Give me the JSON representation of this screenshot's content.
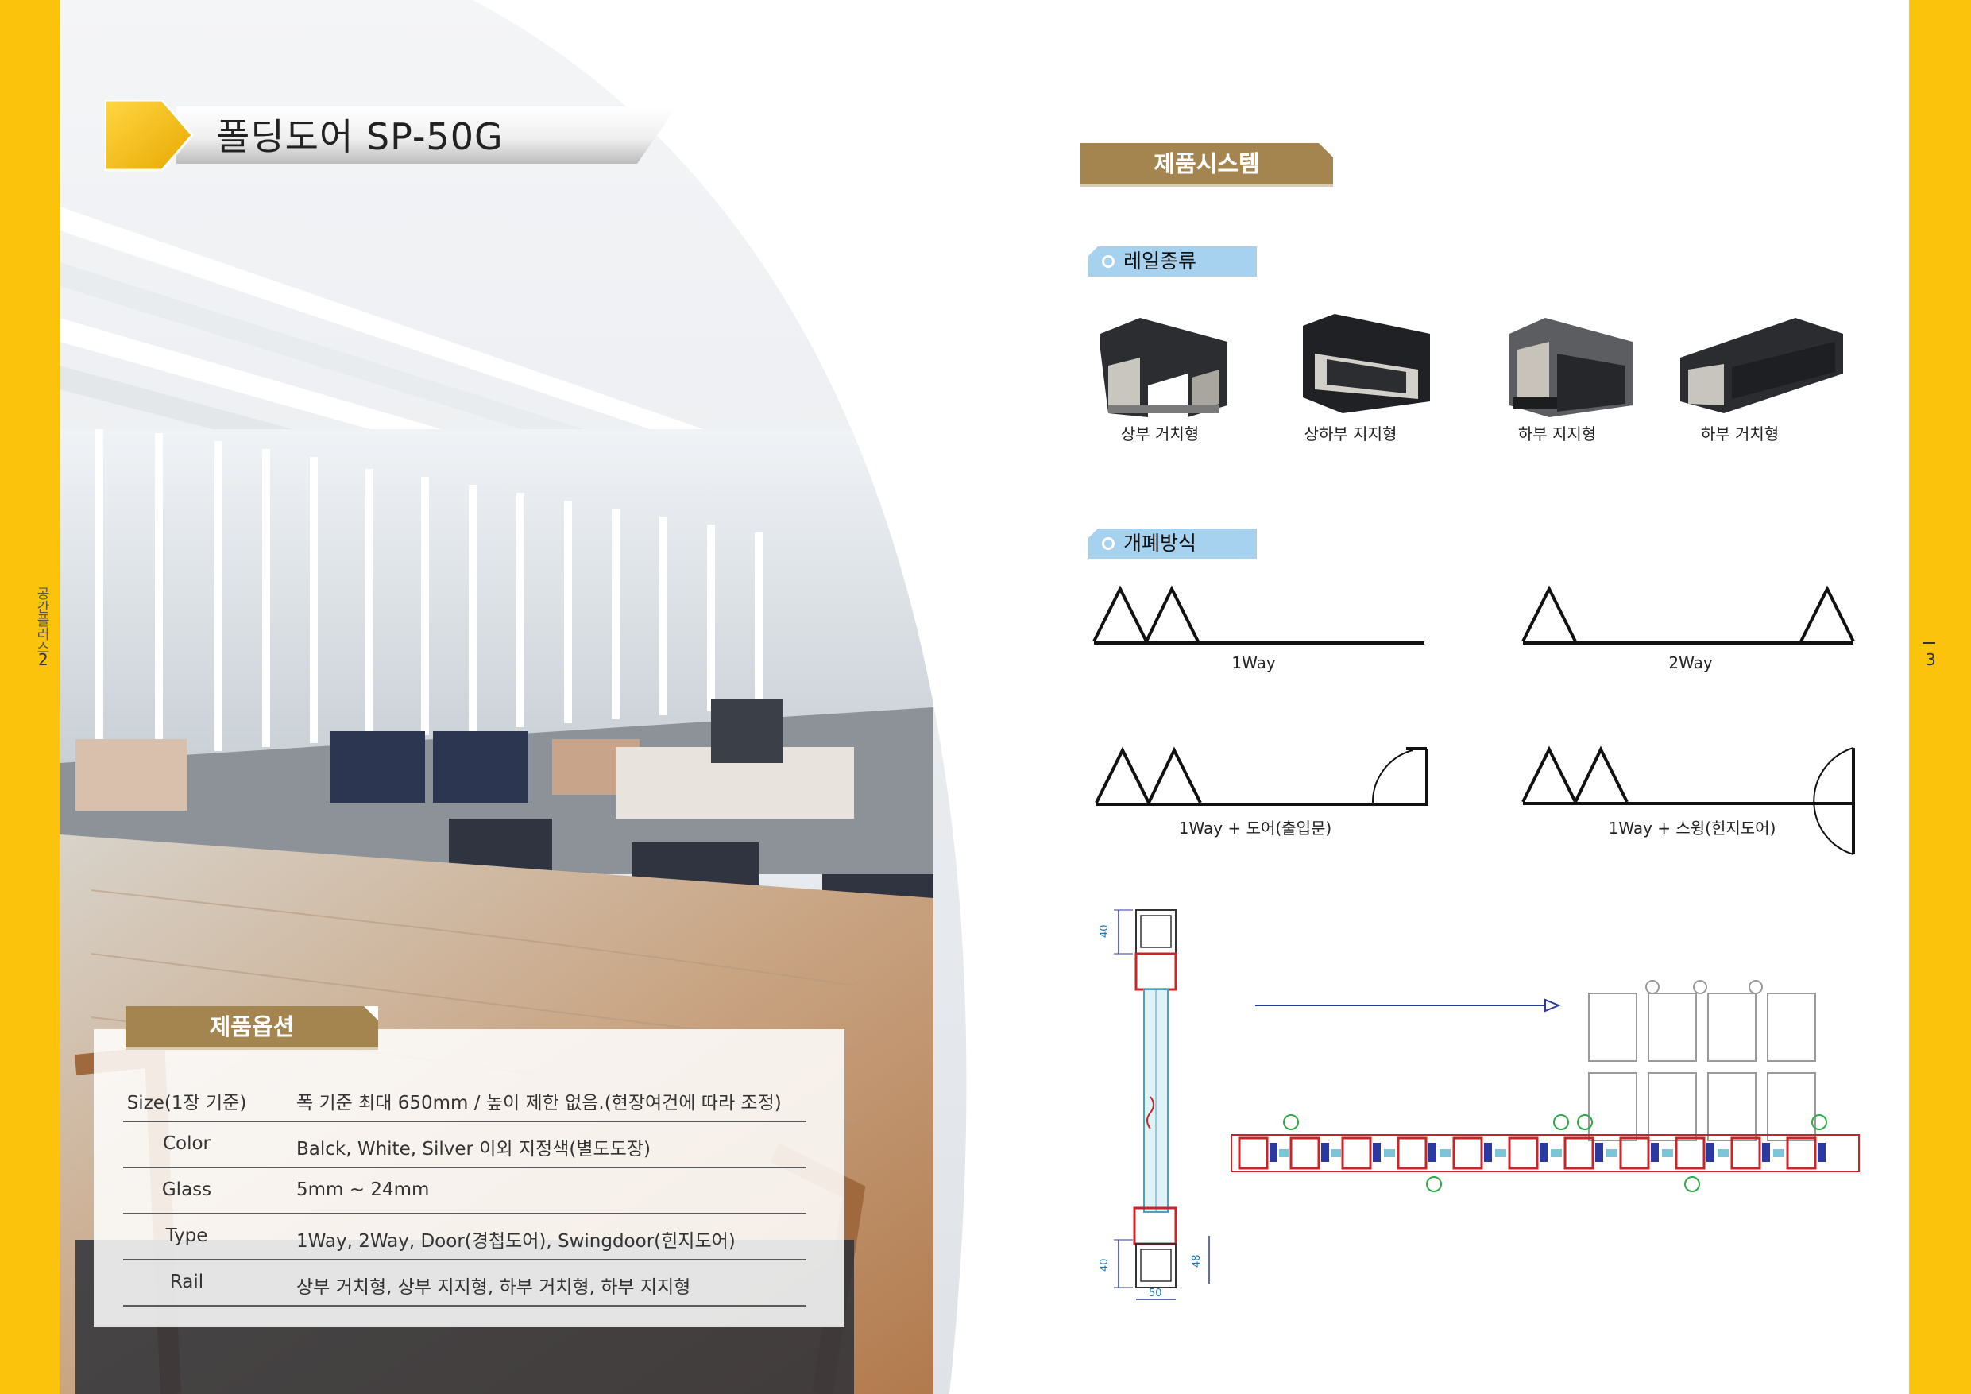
{
  "document": {
    "title": "폴딩도어 SP-50G",
    "side_label": "공간플러스",
    "page_left": "2",
    "page_right": "3"
  },
  "options": {
    "heading": "제품옵션",
    "rows": [
      {
        "label": "Size(1장 기준)",
        "value": "폭 기준 최대 650mm / 높이 제한 없음.(현장여건에 따라 조정)"
      },
      {
        "label": "Color",
        "value": "Balck, White, Silver 이외 지정색(별도도장)"
      },
      {
        "label": "Glass",
        "value": "5mm ~ 24mm"
      },
      {
        "label": "Type",
        "value": "1Way, 2Way, Door(경첩도어), Swingdoor(힌지도어)"
      },
      {
        "label": "Rail",
        "value": "상부 거치형, 상부 지지형, 하부 거치형, 하부 지지형"
      }
    ]
  },
  "system": {
    "heading": "제품시스템",
    "rail_heading": "레일종류",
    "rails": [
      {
        "label": "상부 거치형"
      },
      {
        "label": "상하부 지지형"
      },
      {
        "label": "하부 지지형"
      },
      {
        "label": "하부 거치형"
      }
    ],
    "opening_heading": "개폐방식",
    "openings": [
      {
        "label": "1Way"
      },
      {
        "label": "2Way"
      },
      {
        "label": "1Way + 도어(출입문)"
      },
      {
        "label": "1Way + 스윙(힌지도어)"
      }
    ],
    "drawing": {
      "dim_top": "40",
      "dim_bottom_left": "40",
      "dim_bottom_right": "48",
      "dim_width": "50"
    }
  },
  "colors": {
    "accent_yellow": "#fbc30b",
    "tag_brown": "#a4844f",
    "tag_blue": "#a6d1ef"
  }
}
